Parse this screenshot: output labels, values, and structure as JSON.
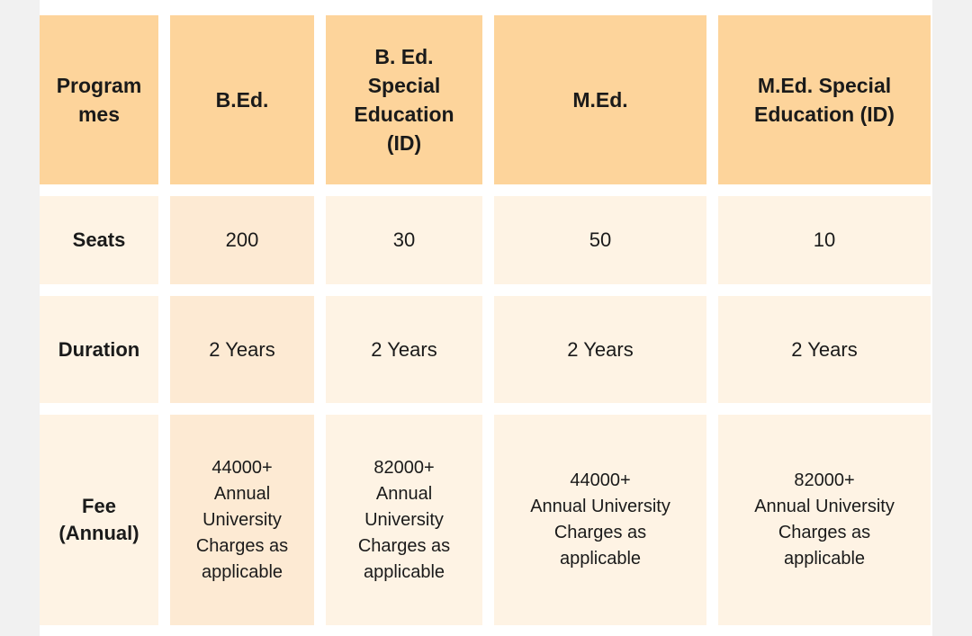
{
  "header": {
    "programmes": [
      "Program",
      "mes"
    ],
    "bed": "B.Ed.",
    "bed_special": [
      "B. Ed.",
      "Special",
      "Education",
      "(ID)"
    ],
    "med": "M.Ed.",
    "med_special": [
      "M.Ed. Special",
      "Education (ID)"
    ]
  },
  "seats": {
    "label": "Seats",
    "values": [
      "200",
      "30",
      "50",
      "10"
    ]
  },
  "duration": {
    "label": "Duration",
    "values": [
      "2 Years",
      "2 Years",
      "2 Years",
      "2 Years"
    ]
  },
  "fee": {
    "label": [
      "Fee",
      "(Annual)"
    ],
    "bed": [
      "44000+",
      "Annual",
      "University",
      "Charges as",
      "applicable"
    ],
    "bed_special": [
      "82000+",
      "Annual",
      "University",
      "Charges as",
      "applicable"
    ],
    "med": [
      "44000+",
      "Annual University",
      "Charges as",
      "applicable"
    ],
    "med_special": [
      "82000+",
      "Annual University",
      "Charges as",
      "applicable"
    ]
  },
  "colors": {
    "header_bg": "#fdd49b",
    "cell_bg_dark": "#fdead3",
    "cell_bg_light": "#fef3e4"
  }
}
